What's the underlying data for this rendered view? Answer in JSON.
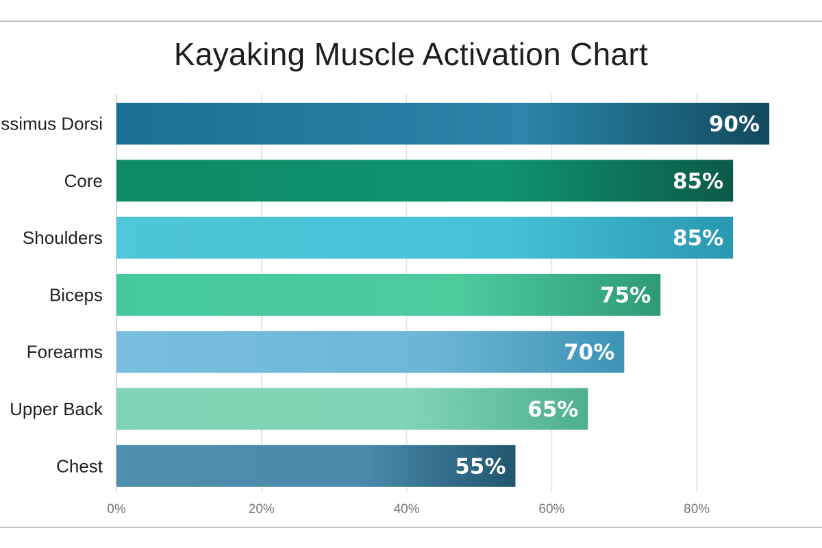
{
  "chart_data": {
    "type": "bar",
    "orientation": "horizontal",
    "title": "Kayaking Muscle Activation Chart",
    "categories": [
      "Latissimus Dorsi",
      "Core",
      "Shoulders",
      "Biceps",
      "Forearms",
      "Upper Back",
      "Chest"
    ],
    "values": [
      90,
      85,
      85,
      75,
      70,
      65,
      55
    ],
    "value_labels": [
      "90%",
      "85%",
      "85%",
      "75%",
      "70%",
      "65%",
      "55%"
    ],
    "xlim": [
      0,
      100
    ],
    "x_ticks": [
      0,
      20,
      40,
      60,
      80
    ],
    "x_tick_labels": [
      "0%",
      "20%",
      "40%",
      "60%",
      "80%"
    ],
    "xlabel": "",
    "ylabel": "",
    "grid": "vertical",
    "bar_colors": [
      [
        "#1a6f92",
        "#2a85a8",
        "#124a5e"
      ],
      [
        "#0d8a66",
        "#0f9470",
        "#0b5a49"
      ],
      [
        "#4fc6da",
        "#46c2d6",
        "#2a98b0"
      ],
      [
        "#45c99b",
        "#4dcc9e",
        "#2e9a78"
      ],
      [
        "#79bedf",
        "#6cb6d8",
        "#3d93b4"
      ],
      [
        "#7ed3b4",
        "#80d4b5",
        "#4eb08d"
      ],
      [
        "#4e8fad",
        "#4a8aaa",
        "#1f566f"
      ]
    ]
  }
}
